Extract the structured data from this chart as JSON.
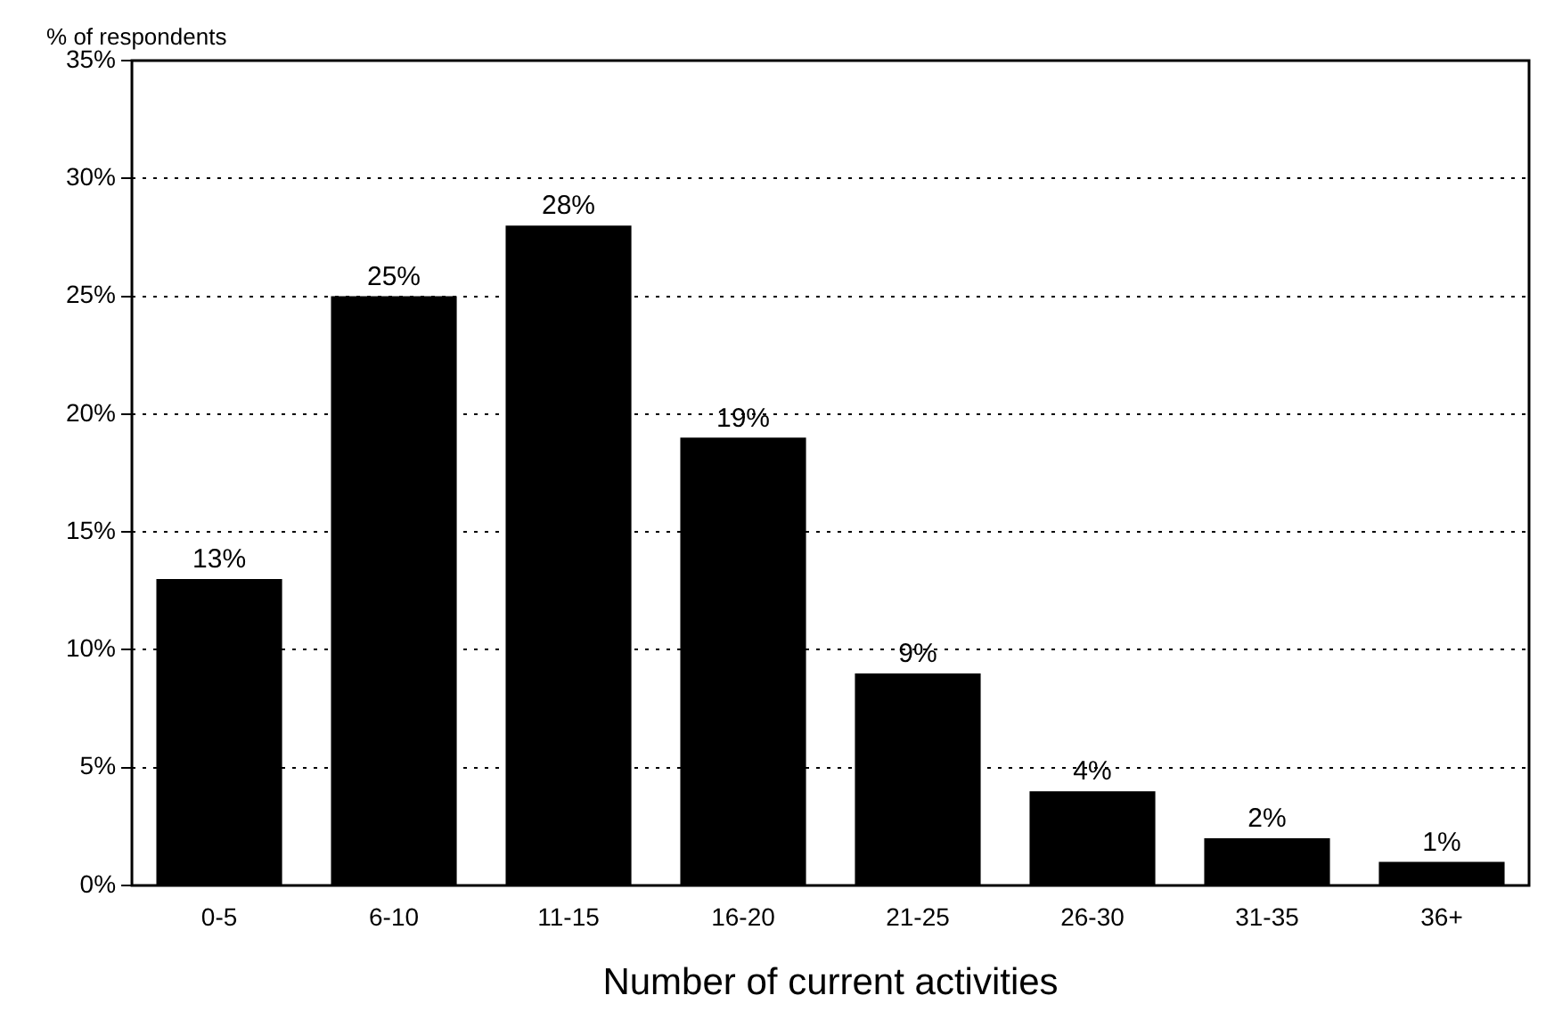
{
  "chart_data": {
    "type": "bar",
    "ylabel": "% of respondents",
    "xlabel": "Number of current activities",
    "categories": [
      "0-5",
      "6-10",
      "11-15",
      "16-20",
      "21-25",
      "26-30",
      "31-35",
      "36+"
    ],
    "values": [
      13,
      25,
      28,
      19,
      9,
      4,
      2,
      1
    ],
    "value_labels": [
      "13%",
      "25%",
      "28%",
      "19%",
      "9%",
      "4%",
      "2%",
      "1%"
    ],
    "color": "#000000",
    "ylim": [
      0,
      35
    ],
    "yticks": [
      {
        "value": 0,
        "label": "0%"
      },
      {
        "value": 5,
        "label": "5%"
      },
      {
        "value": 10,
        "label": "10%"
      },
      {
        "value": 15,
        "label": "15%"
      },
      {
        "value": 20,
        "label": "20%"
      },
      {
        "value": 25,
        "label": "25%"
      },
      {
        "value": 30,
        "label": "30%"
      },
      {
        "value": 35,
        "label": "35%"
      }
    ],
    "grid": "y",
    "legend": false
  }
}
